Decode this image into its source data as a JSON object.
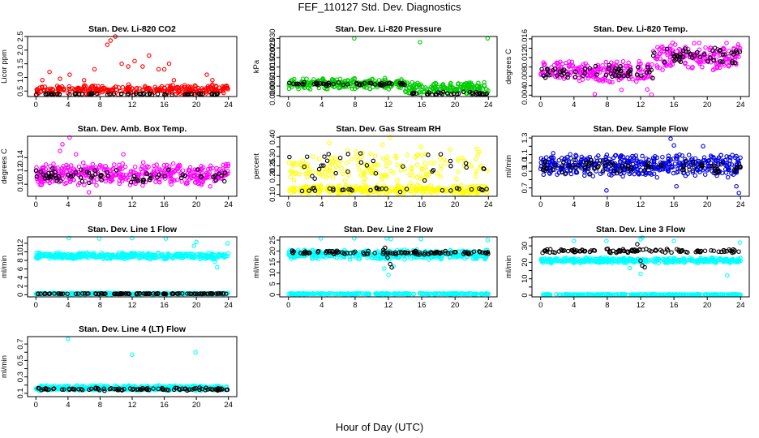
{
  "figure": {
    "title": "FEF_110127  Std. Dev. Diagnostics",
    "xlabel": "Hour of Day (UTC)"
  },
  "chart_data": [
    {
      "type": "scatter",
      "title": "Stan. Dev. Li-820 CO2",
      "ylabel": "Licor ppm",
      "xlim": [
        0,
        24
      ],
      "ylim": [
        0.3,
        2.5
      ],
      "xticks": [
        0,
        4,
        8,
        12,
        16,
        20,
        24
      ],
      "yticks": [
        0.5,
        1.0,
        1.5,
        2.0,
        2.5
      ],
      "ytick_labels": [
        "0.5",
        "1.0",
        "1.5",
        "2.0",
        "2.5"
      ],
      "colors": {
        "main": "#ff0000",
        "overlay": "#000000"
      },
      "series": [
        {
          "name": "",
          "role": "main",
          "bands": [
            {
              "from": 0,
              "to": 24,
              "lo": 0.35,
              "hi": 0.75,
              "n": 320
            }
          ],
          "points": [
            [
              0.8,
              0.9
            ],
            [
              1.7,
              1.2
            ],
            [
              3.0,
              0.95
            ],
            [
              4.2,
              1.1
            ],
            [
              6.0,
              0.9
            ],
            [
              7.3,
              1.3
            ],
            [
              8.9,
              2.2
            ],
            [
              9.3,
              2.35
            ],
            [
              9.9,
              2.5
            ],
            [
              10.7,
              1.5
            ],
            [
              11.5,
              1.4
            ],
            [
              12.3,
              1.6
            ],
            [
              13.3,
              1.4
            ],
            [
              14.1,
              1.8
            ],
            [
              15.3,
              1.3
            ],
            [
              16.0,
              1.3
            ],
            [
              16.6,
              1.5
            ],
            [
              17.2,
              0.9
            ],
            [
              21.3,
              1.1
            ],
            [
              22.0,
              0.9
            ]
          ]
        },
        {
          "name": "",
          "role": "overlay",
          "bands": [
            {
              "from": 0,
              "to": 24,
              "lo": 0.35,
              "hi": 0.42,
              "n": 60
            }
          ]
        }
      ]
    },
    {
      "type": "scatter",
      "title": "Stan. Dev. Li-820 Pressure",
      "ylabel": "kPa",
      "xlim": [
        0,
        24
      ],
      "ylim": [
        -0.0005,
        0.031
      ],
      "xticks": [
        0,
        4,
        8,
        12,
        16,
        20,
        24
      ],
      "yticks": [
        0.0,
        0.005,
        0.01,
        0.015,
        0.02,
        0.025,
        0.03
      ],
      "ytick_labels": [
        "0.000",
        "0.005",
        "0.010",
        "0.015",
        "0.020",
        "0.025",
        "0.030"
      ],
      "colors": {
        "main": "#00cc00",
        "overlay": "#000000"
      },
      "series": [
        {
          "name": "",
          "role": "main",
          "bands": [
            {
              "from": 0,
              "to": 14,
              "lo": 0.003,
              "hi": 0.0095,
              "n": 230
            },
            {
              "from": 14,
              "to": 24,
              "lo": 0.0005,
              "hi": 0.0075,
              "n": 160
            }
          ],
          "points": [
            [
              7.9,
              0.03
            ],
            [
              15.8,
              0.028
            ],
            [
              23.9,
              0.03
            ]
          ]
        },
        {
          "name": "",
          "role": "overlay",
          "bands": [
            {
              "from": 0,
              "to": 14,
              "lo": 0.005,
              "hi": 0.007,
              "n": 55
            },
            {
              "from": 14,
              "to": 24,
              "lo": 0.0,
              "hi": 0.002,
              "n": 35
            }
          ]
        }
      ]
    },
    {
      "type": "scatter",
      "title": "Stan. Dev. Li-820 Temp.",
      "ylabel": "degrees C",
      "xlim": [
        0,
        24
      ],
      "ylim": [
        0.0037,
        0.0165
      ],
      "xticks": [
        0,
        4,
        8,
        12,
        16,
        20,
        24
      ],
      "yticks": [
        0.004,
        0.006,
        0.008,
        0.01,
        0.012,
        0.014,
        0.016
      ],
      "ytick_labels": [
        "0.004",
        "",
        "0.008",
        "",
        "0.012",
        "",
        "0.016"
      ],
      "colors": {
        "main": "#ff00ff",
        "overlay": "#000000"
      },
      "series": [
        {
          "name": "",
          "role": "main",
          "bands": [
            {
              "from": 0,
              "to": 13.5,
              "lo": 0.0065,
              "hi": 0.0115,
              "n": 230
            },
            {
              "from": 13.5,
              "to": 24,
              "lo": 0.009,
              "hi": 0.0155,
              "n": 180
            }
          ],
          "points": [
            [
              6.5,
              0.0042
            ],
            [
              13.3,
              0.0041
            ],
            [
              12.8,
              0.0052
            ],
            [
              9.7,
              0.0051
            ]
          ]
        },
        {
          "name": "",
          "role": "overlay",
          "bands": [
            {
              "from": 0,
              "to": 13.5,
              "lo": 0.0075,
              "hi": 0.0105,
              "n": 55
            },
            {
              "from": 13.5,
              "to": 24,
              "lo": 0.0105,
              "hi": 0.0145,
              "n": 45
            }
          ]
        }
      ]
    },
    {
      "type": "scatter",
      "title": "Stan. Dev. Amb. Box Temp.",
      "ylabel": "degrees C",
      "xlim": [
        0,
        24
      ],
      "ylim": [
        0.082,
        0.172
      ],
      "xticks": [
        0,
        4,
        8,
        12,
        16,
        20,
        24
      ],
      "yticks": [
        0.1,
        0.12,
        0.14
      ],
      "ytick_labels": [
        "0.10",
        "0.12",
        "0.14"
      ],
      "colors": {
        "main": "#ff00ff",
        "overlay": "#000000"
      },
      "series": [
        {
          "name": "",
          "role": "main",
          "bands": [
            {
              "from": 0,
              "to": 24,
              "lo": 0.095,
              "hi": 0.135,
              "n": 420
            }
          ],
          "points": [
            [
              3.3,
              0.16
            ],
            [
              4.2,
              0.17
            ],
            [
              3.0,
              0.15
            ],
            [
              5.0,
              0.145
            ],
            [
              6.6,
              0.088
            ],
            [
              10.9,
              0.145
            ]
          ]
        },
        {
          "name": "",
          "role": "overlay",
          "bands": [
            {
              "from": 0,
              "to": 24,
              "lo": 0.1,
              "hi": 0.125,
              "n": 70
            }
          ]
        }
      ]
    },
    {
      "type": "scatter",
      "title": "Stan. Dev. Gas Stream RH",
      "ylabel": "percent",
      "xlim": [
        0,
        24
      ],
      "ylim": [
        0.09,
        0.405
      ],
      "xticks": [
        0,
        4,
        8,
        12,
        16,
        20,
        24
      ],
      "yticks": [
        0.1,
        0.15,
        0.2,
        0.25,
        0.3,
        0.35,
        0.4
      ],
      "ytick_labels": [
        "0.10",
        "",
        "0.20",
        "0.25",
        "0.30",
        "",
        "0.40"
      ],
      "colors": {
        "main": "#ffff00",
        "overlay": "#000000"
      },
      "series": [
        {
          "name": "",
          "role": "main",
          "bands": [
            {
              "from": 0,
              "to": 24,
              "lo": 0.1,
              "hi": 0.15,
              "n": 320
            },
            {
              "from": 0,
              "to": 24,
              "lo": 0.15,
              "hi": 0.34,
              "n": 170
            }
          ],
          "points": [
            [
              4.9,
              0.37
            ],
            [
              11.3,
              0.36
            ],
            [
              12.2,
              0.4
            ],
            [
              15.9,
              0.35
            ],
            [
              22.6,
              0.34
            ]
          ]
        },
        {
          "name": "",
          "role": "overlay",
          "bands": [
            {
              "from": 0,
              "to": 24,
              "lo": 0.11,
              "hi": 0.14,
              "n": 30
            },
            {
              "from": 0,
              "to": 24,
              "lo": 0.17,
              "hi": 0.35,
              "n": 32
            }
          ]
        }
      ]
    },
    {
      "type": "scatter",
      "title": "Stan. Dev. Sample Flow",
      "ylabel": "ml/min",
      "xlim": [
        0,
        24
      ],
      "ylim": [
        0.6,
        1.32
      ],
      "xticks": [
        0,
        4,
        8,
        12,
        16,
        20,
        24
      ],
      "yticks": [
        0.7,
        0.8,
        0.9,
        1.0,
        1.1,
        1.2,
        1.3
      ],
      "ytick_labels": [
        "0.7",
        "",
        "0.9",
        "1.0",
        "1.1",
        "",
        "1.3"
      ],
      "colors": {
        "main": "#0000dd",
        "overlay": "#000000"
      },
      "series": [
        {
          "name": "",
          "role": "main",
          "bands": [
            {
              "from": 0,
              "to": 24,
              "lo": 0.82,
              "hi": 1.12,
              "n": 460
            }
          ],
          "points": [
            [
              15.6,
              1.29
            ],
            [
              16.0,
              1.21
            ],
            [
              19.5,
              1.2
            ],
            [
              7.9,
              0.67
            ],
            [
              16.3,
              0.72
            ],
            [
              23.8,
              0.64
            ],
            [
              23.5,
              0.72
            ]
          ]
        },
        {
          "name": "",
          "role": "overlay",
          "bands": [
            {
              "from": 0,
              "to": 24,
              "lo": 0.85,
              "hi": 1.05,
              "n": 80
            }
          ]
        }
      ]
    },
    {
      "type": "scatter",
      "title": "Stan. Dev. Line 1 Flow",
      "ylabel": "ml/min",
      "xlim": [
        0,
        24
      ],
      "ylim": [
        -0.5,
        13.5
      ],
      "xticks": [
        0,
        4,
        8,
        12,
        16,
        20,
        24
      ],
      "yticks": [
        0,
        2,
        4,
        6,
        8,
        10,
        12
      ],
      "ytick_labels": [
        "0",
        "2",
        "4",
        "6",
        "8",
        "10",
        "12"
      ],
      "colors": {
        "main": "#00ffff",
        "overlay": "#000000"
      },
      "series": [
        {
          "name": "",
          "role": "main",
          "bands": [
            {
              "from": 0,
              "to": 24,
              "lo": 8.2,
              "hi": 9.9,
              "n": 440
            },
            {
              "from": 0,
              "to": 24,
              "lo": 0.05,
              "hi": 0.45,
              "n": 280
            }
          ],
          "points": [
            [
              4.1,
              13.2
            ],
            [
              7.9,
              13.1
            ],
            [
              12.0,
              13.2
            ],
            [
              16.2,
              13.1
            ],
            [
              20.0,
              12.3
            ],
            [
              23.9,
              12.0
            ],
            [
              22.6,
              6.4
            ],
            [
              22.3,
              7.7
            ],
            [
              19.7,
              11.4
            ]
          ]
        },
        {
          "name": "",
          "role": "overlay",
          "bands": [
            {
              "from": 0,
              "to": 24,
              "lo": 0.15,
              "hi": 0.35,
              "n": 110
            }
          ]
        }
      ]
    },
    {
      "type": "scatter",
      "title": "Stan. Dev. Line 2 Flow",
      "ylabel": "ml/min",
      "xlim": [
        0,
        24
      ],
      "ylim": [
        -1,
        26.5
      ],
      "xticks": [
        0,
        4,
        8,
        12,
        16,
        20,
        24
      ],
      "yticks": [
        0,
        5,
        10,
        15,
        20,
        25
      ],
      "ytick_labels": [
        "0",
        "5",
        "10",
        "15",
        "20",
        "25"
      ],
      "colors": {
        "main": "#00ffff",
        "overlay": "#000000"
      },
      "series": [
        {
          "name": "",
          "role": "main",
          "bands": [
            {
              "from": 0,
              "to": 24,
              "lo": 16.0,
              "hi": 20.8,
              "n": 440
            },
            {
              "from": 0,
              "to": 24,
              "lo": 0.1,
              "hi": 0.7,
              "n": 280
            }
          ],
          "points": [
            [
              3.9,
              25.8
            ],
            [
              7.9,
              25.8
            ],
            [
              11.8,
              25.8
            ],
            [
              12.3,
              25.5
            ],
            [
              15.9,
              25.5
            ],
            [
              23.9,
              25.0
            ],
            [
              12.0,
              9.0
            ],
            [
              11.5,
              12.0
            ],
            [
              12.6,
              13.0
            ]
          ]
        },
        {
          "name": "",
          "role": "overlay",
          "bands": [
            {
              "from": 0,
              "to": 24,
              "lo": 18.3,
              "hi": 20.3,
              "n": 110
            }
          ],
          "points": [
            [
              11.6,
              21.5
            ],
            [
              11.9,
              17.0
            ],
            [
              12.2,
              14.0
            ],
            [
              12.4,
              12.5
            ],
            [
              11.4,
              20.5
            ]
          ]
        }
      ]
    },
    {
      "type": "scatter",
      "title": "Stan. Dev. Line 3 Flow",
      "ylabel": "ml/min",
      "xlim": [
        0,
        24
      ],
      "ylim": [
        -1,
        35.5
      ],
      "xticks": [
        0,
        4,
        8,
        12,
        16,
        20,
        24
      ],
      "yticks": [
        0,
        5,
        10,
        15,
        20,
        25,
        30,
        35
      ],
      "ytick_labels": [
        "0",
        "",
        "10",
        "",
        "20",
        "",
        "30",
        ""
      ],
      "colors": {
        "main": "#00ffff",
        "overlay": "#000000"
      },
      "series": [
        {
          "name": "",
          "role": "main",
          "bands": [
            {
              "from": 0,
              "to": 24,
              "lo": 19.3,
              "hi": 23.0,
              "n": 430
            },
            {
              "from": 0,
              "to": 24,
              "lo": 0.1,
              "hi": 0.7,
              "n": 280
            }
          ],
          "points": [
            [
              4.0,
              33.0
            ],
            [
              7.9,
              33.0
            ],
            [
              12.0,
              34.0
            ],
            [
              12.2,
              35.0
            ],
            [
              16.0,
              33.0
            ],
            [
              23.9,
              32.0
            ],
            [
              12.0,
              13.0
            ],
            [
              22.4,
              12.0
            ],
            [
              10.7,
              16.5
            ]
          ]
        },
        {
          "name": "",
          "role": "overlay",
          "bands": [
            {
              "from": 0,
              "to": 24,
              "lo": 25.5,
              "hi": 28.5,
              "n": 110
            }
          ],
          "points": [
            [
              11.6,
              31.0
            ],
            [
              12.0,
              21.0
            ],
            [
              12.2,
              18.0
            ],
            [
              12.5,
              17.0
            ]
          ]
        }
      ]
    },
    {
      "type": "scatter",
      "title": "Stan. Dev. Line 4 (LT) Flow",
      "ylabel": "ml/min",
      "xlim": [
        0,
        24
      ],
      "ylim": [
        0.06,
        0.79
      ],
      "xticks": [
        0,
        4,
        8,
        12,
        16,
        20,
        24
      ],
      "yticks": [
        0.1,
        0.2,
        0.3,
        0.4,
        0.5,
        0.6,
        0.7
      ],
      "ytick_labels": [
        "0.1",
        "",
        "0.3",
        "",
        "0.5",
        "",
        "0.7"
      ],
      "colors": {
        "main": "#00ffff",
        "overlay": "#000000"
      },
      "series": [
        {
          "name": "",
          "role": "main",
          "bands": [
            {
              "from": 0,
              "to": 24,
              "lo": 0.13,
              "hi": 0.2,
              "n": 480
            }
          ],
          "points": [
            [
              4.0,
              0.76
            ],
            [
              12.0,
              0.57
            ],
            [
              19.9,
              0.6
            ]
          ]
        },
        {
          "name": "",
          "role": "overlay",
          "bands": [
            {
              "from": 0,
              "to": 24,
              "lo": 0.13,
              "hi": 0.17,
              "n": 100
            }
          ]
        }
      ]
    }
  ]
}
